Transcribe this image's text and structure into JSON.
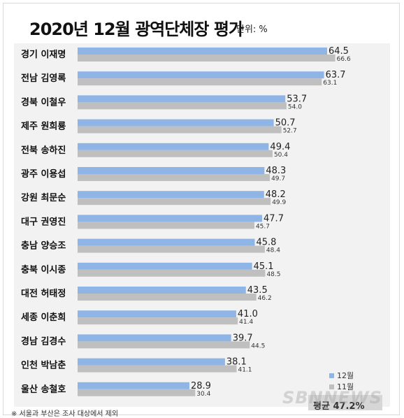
{
  "header": {
    "title": "2020년 12월 광역단체장 평가",
    "unit": "단위: %"
  },
  "footnote": "※ 서울과 부산은 조사 대상에서 제외",
  "average_label": "평균 47.2%",
  "watermark": "SBNNEWS",
  "colors": {
    "dec": "#8fb4e6",
    "nov": "#bfbfbf",
    "panel": "#f2f2f2"
  },
  "chart_data": {
    "type": "bar",
    "orientation": "horizontal",
    "title": "2020년 12월 광역단체장 평가",
    "unit": "단위: %",
    "categories": [
      "경기 이재명",
      "전남 김영록",
      "경북 이철우",
      "제주 원희룡",
      "전북 송하진",
      "광주 이용섭",
      "강원 최문순",
      "대구 권영진",
      "충남 양승조",
      "충북 이시종",
      "대전 허태정",
      "세종 이춘희",
      "경남 김경수",
      "인천 박남춘",
      "울산 송철호"
    ],
    "series": [
      {
        "name": "12월",
        "values": [
          64.5,
          63.7,
          53.7,
          50.7,
          49.4,
          48.3,
          48.2,
          47.7,
          45.8,
          45.1,
          43.5,
          41.0,
          39.7,
          38.1,
          28.9
        ]
      },
      {
        "name": "11월",
        "values": [
          66.6,
          63.1,
          54.0,
          52.7,
          50.4,
          49.7,
          49.9,
          45.7,
          48.4,
          48.5,
          46.2,
          41.4,
          44.5,
          41.1,
          30.4
        ]
      }
    ],
    "value_labels": [
      [
        "64.5",
        "63.7",
        "53.7",
        "50.7",
        "49.4",
        "48.3",
        "48.2",
        "47.7",
        "45.8",
        "45.1",
        "43.5",
        "41.0",
        "39.7",
        "38.1",
        "28.9"
      ],
      [
        "66.6",
        "63.1",
        "54.0",
        "52.7",
        "50.4",
        "49.7",
        "49.9",
        "45.7",
        "48.4",
        "48.5",
        "46.2",
        "41.4",
        "44.5",
        "41.1",
        "30.4"
      ]
    ],
    "legend_position": "bottom-right",
    "grid": false,
    "xlim": [
      0,
      75
    ]
  }
}
